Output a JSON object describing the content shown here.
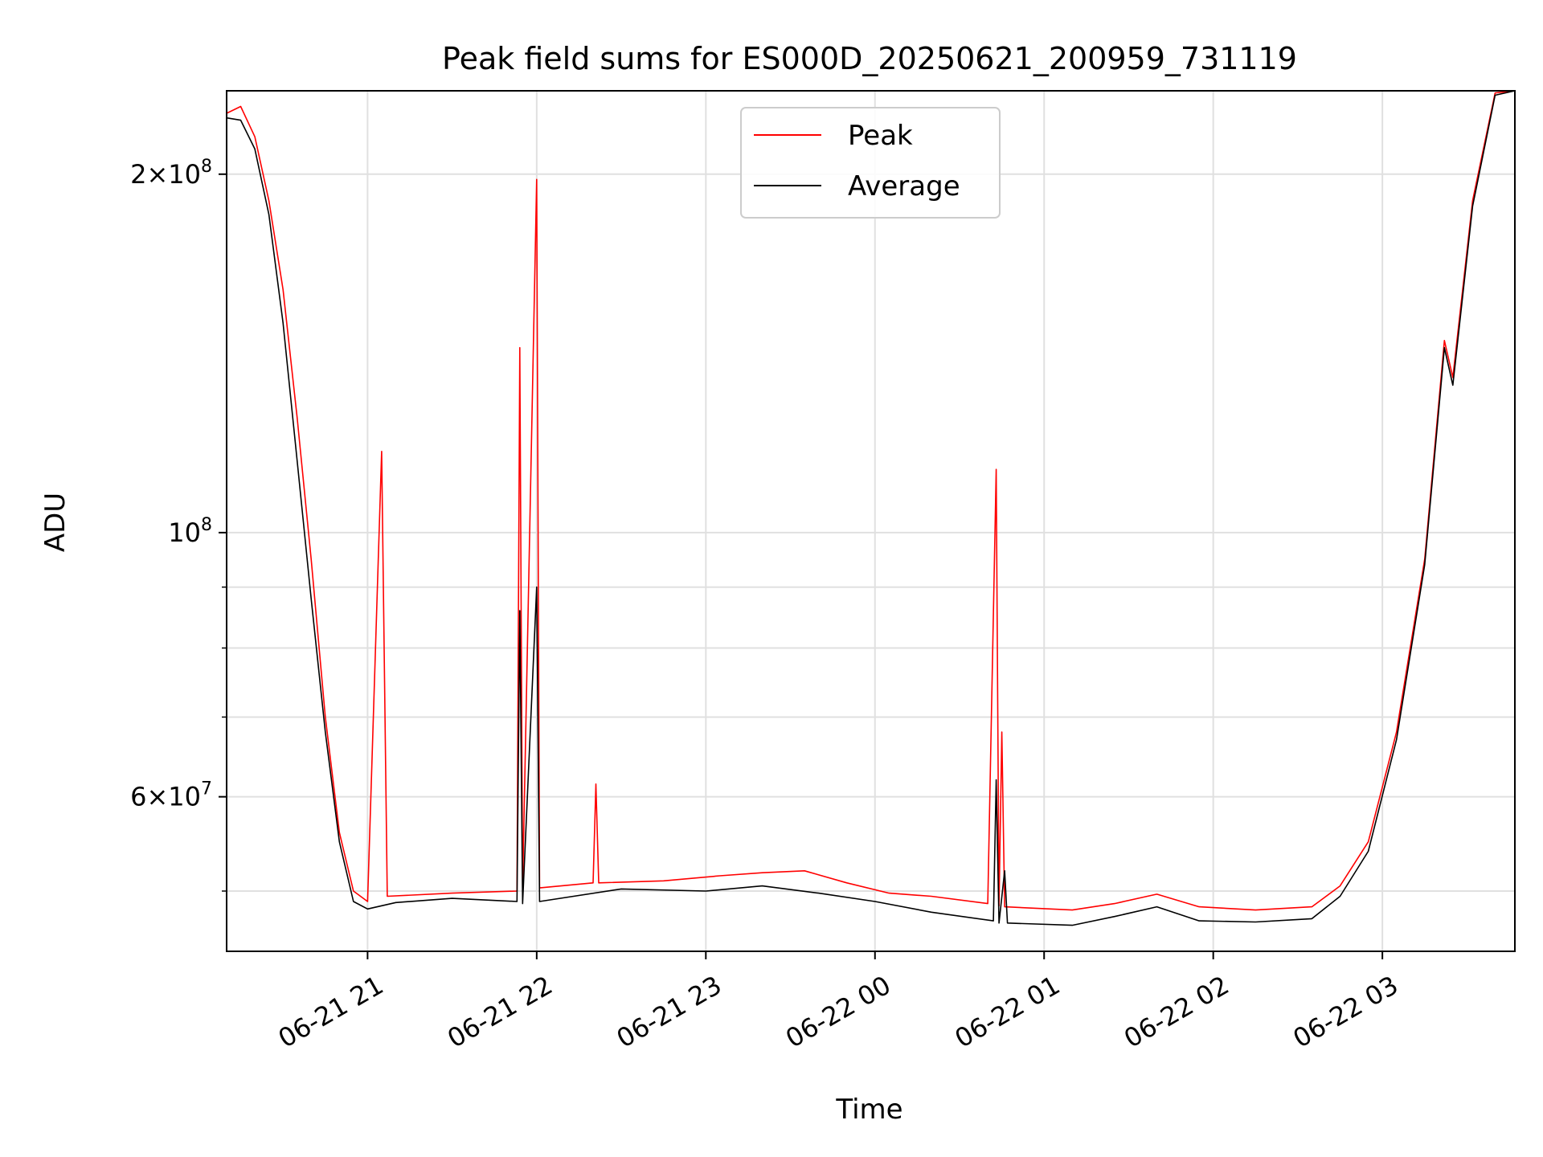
{
  "chart_data": {
    "type": "line",
    "title": "Peak field sums for ES000D_20250621_200959_731119",
    "xlabel": "Time",
    "ylabel": "ADU",
    "x_range": [
      "2025-06-21 20:10",
      "2025-06-22 03:47"
    ],
    "ylim": [
      44500000,
      235000000
    ],
    "y_scale": "log",
    "grid": true,
    "legend_position": "top-center",
    "x_ticks": [
      {
        "t": "2025-06-21 21:00",
        "label": "06-21 21"
      },
      {
        "t": "2025-06-21 22:00",
        "label": "06-21 22"
      },
      {
        "t": "2025-06-21 23:00",
        "label": "06-21 23"
      },
      {
        "t": "2025-06-22 00:00",
        "label": "06-22 00"
      },
      {
        "t": "2025-06-22 01:00",
        "label": "06-22 01"
      },
      {
        "t": "2025-06-22 02:00",
        "label": "06-22 02"
      },
      {
        "t": "2025-06-22 03:00",
        "label": "06-22 03"
      }
    ],
    "y_ticks_major": [
      {
        "value": 200000000,
        "mantissa": "2",
        "exp": "8",
        "mult": true
      },
      {
        "value": 100000000,
        "mantissa": "10",
        "exp": "8",
        "mult": false
      },
      {
        "value": 60000000,
        "mantissa": "6",
        "exp": "7",
        "mult": true
      }
    ],
    "y_ticks_minor": [
      50000000,
      70000000,
      80000000,
      90000000
    ],
    "series": [
      {
        "name": "Peak",
        "color": "#ff0000",
        "points": [
          [
            "2025-06-21 20:10",
            225000000
          ],
          [
            "2025-06-21 20:15",
            228000000
          ],
          [
            "2025-06-21 20:20",
            215000000
          ],
          [
            "2025-06-21 20:25",
            190000000
          ],
          [
            "2025-06-21 20:30",
            160000000
          ],
          [
            "2025-06-21 20:35",
            125000000
          ],
          [
            "2025-06-21 20:40",
            95000000
          ],
          [
            "2025-06-21 20:45",
            70000000
          ],
          [
            "2025-06-21 20:50",
            56000000
          ],
          [
            "2025-06-21 20:55",
            50000000
          ],
          [
            "2025-06-21 21:00",
            49000000
          ],
          [
            "2025-06-21 21:05",
            117000000
          ],
          [
            "2025-06-21 21:07",
            49500000
          ],
          [
            "2025-06-21 21:30",
            49800000
          ],
          [
            "2025-06-21 21:53",
            50000000
          ],
          [
            "2025-06-21 21:54",
            143000000
          ],
          [
            "2025-06-21 21:55",
            50200000
          ],
          [
            "2025-06-21 22:00",
            198000000
          ],
          [
            "2025-06-21 22:01",
            50300000
          ],
          [
            "2025-06-21 22:20",
            50800000
          ],
          [
            "2025-06-21 22:21",
            61500000
          ],
          [
            "2025-06-21 22:22",
            50800000
          ],
          [
            "2025-06-21 22:45",
            51000000
          ],
          [
            "2025-06-21 23:05",
            51500000
          ],
          [
            "2025-06-21 23:20",
            51800000
          ],
          [
            "2025-06-21 23:35",
            52000000
          ],
          [
            "2025-06-21 23:50",
            50800000
          ],
          [
            "2025-06-22 00:05",
            49800000
          ],
          [
            "2025-06-22 00:20",
            49500000
          ],
          [
            "2025-06-22 00:40",
            48800000
          ],
          [
            "2025-06-22 00:43",
            113000000
          ],
          [
            "2025-06-22 00:44",
            48600000
          ],
          [
            "2025-06-22 00:45",
            68000000
          ],
          [
            "2025-06-22 00:46",
            48500000
          ],
          [
            "2025-06-22 01:10",
            48200000
          ],
          [
            "2025-06-22 01:25",
            48800000
          ],
          [
            "2025-06-22 01:40",
            49700000
          ],
          [
            "2025-06-22 01:55",
            48500000
          ],
          [
            "2025-06-22 02:15",
            48200000
          ],
          [
            "2025-06-22 02:35",
            48500000
          ],
          [
            "2025-06-22 02:45",
            50500000
          ],
          [
            "2025-06-22 02:55",
            55000000
          ],
          [
            "2025-06-22 03:05",
            68000000
          ],
          [
            "2025-06-22 03:15",
            95000000
          ],
          [
            "2025-06-22 03:22",
            145000000
          ],
          [
            "2025-06-22 03:25",
            135000000
          ],
          [
            "2025-06-22 03:32",
            190000000
          ],
          [
            "2025-06-22 03:40",
            234000000
          ],
          [
            "2025-06-22 03:47",
            235000000
          ]
        ]
      },
      {
        "name": "Average",
        "color": "#000000",
        "points": [
          [
            "2025-06-21 20:10",
            223000000
          ],
          [
            "2025-06-21 20:15",
            222000000
          ],
          [
            "2025-06-21 20:20",
            210000000
          ],
          [
            "2025-06-21 20:25",
            185000000
          ],
          [
            "2025-06-21 20:30",
            150000000
          ],
          [
            "2025-06-21 20:35",
            115000000
          ],
          [
            "2025-06-21 20:40",
            88000000
          ],
          [
            "2025-06-21 20:45",
            68000000
          ],
          [
            "2025-06-21 20:50",
            55000000
          ],
          [
            "2025-06-21 20:55",
            49000000
          ],
          [
            "2025-06-21 21:00",
            48300000
          ],
          [
            "2025-06-21 21:10",
            48900000
          ],
          [
            "2025-06-21 21:30",
            49300000
          ],
          [
            "2025-06-21 21:53",
            49000000
          ],
          [
            "2025-06-21 21:54",
            86000000
          ],
          [
            "2025-06-21 21:55",
            48800000
          ],
          [
            "2025-06-21 22:00",
            90000000
          ],
          [
            "2025-06-21 22:01",
            49000000
          ],
          [
            "2025-06-21 22:30",
            50200000
          ],
          [
            "2025-06-21 23:00",
            50000000
          ],
          [
            "2025-06-21 23:20",
            50500000
          ],
          [
            "2025-06-21 23:40",
            49800000
          ],
          [
            "2025-06-22 00:00",
            49000000
          ],
          [
            "2025-06-22 00:20",
            48000000
          ],
          [
            "2025-06-22 00:42",
            47200000
          ],
          [
            "2025-06-22 00:43",
            62000000
          ],
          [
            "2025-06-22 00:44",
            47000000
          ],
          [
            "2025-06-22 00:46",
            52000000
          ],
          [
            "2025-06-22 00:47",
            47000000
          ],
          [
            "2025-06-22 01:10",
            46800000
          ],
          [
            "2025-06-22 01:25",
            47600000
          ],
          [
            "2025-06-22 01:40",
            48500000
          ],
          [
            "2025-06-22 01:55",
            47200000
          ],
          [
            "2025-06-22 02:15",
            47100000
          ],
          [
            "2025-06-22 02:35",
            47400000
          ],
          [
            "2025-06-22 02:45",
            49500000
          ],
          [
            "2025-06-22 02:55",
            54000000
          ],
          [
            "2025-06-22 03:05",
            67000000
          ],
          [
            "2025-06-22 03:15",
            94000000
          ],
          [
            "2025-06-22 03:22",
            143000000
          ],
          [
            "2025-06-22 03:25",
            133000000
          ],
          [
            "2025-06-22 03:32",
            188000000
          ],
          [
            "2025-06-22 03:40",
            233000000
          ],
          [
            "2025-06-22 03:47",
            235000000
          ]
        ]
      }
    ]
  }
}
